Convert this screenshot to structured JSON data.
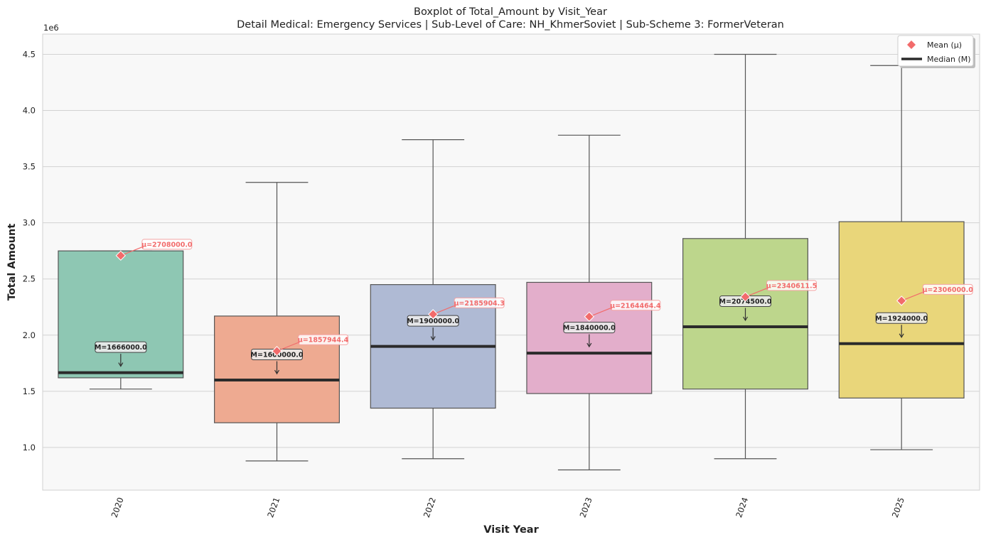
{
  "chart_data": {
    "type": "boxplot",
    "title": "Boxplot of Total_Amount by Visit_Year",
    "subtitle": "Detail Medical: Emergency Services | Sub-Level of Care: NH_KhmerSoviet | Sub-Scheme 3: FormerVeteran",
    "xlabel": "Visit Year",
    "ylabel": "Total Amount",
    "y_offset_label": "1e6",
    "ylim": [
      0.62,
      4.68
    ],
    "yticks": [
      1.0,
      1.5,
      2.0,
      2.5,
      3.0,
      3.5,
      4.0,
      4.5
    ],
    "ytick_labels": [
      "1.0",
      "1.5",
      "2.0",
      "2.5",
      "3.0",
      "3.5",
      "4.0",
      "4.5"
    ],
    "grid": true,
    "legend_position": "top-right",
    "legend": [
      {
        "label": "Mean (μ)",
        "marker": "diamond",
        "color": "#f26b6b"
      },
      {
        "label": "Median (M)",
        "marker": "line",
        "color": "#2b2b2b"
      }
    ],
    "categories": [
      "2020",
      "2021",
      "2022",
      "2023",
      "2024",
      "2025"
    ],
    "boxes": [
      {
        "category": "2020",
        "whisker_low": 1.52,
        "q1": 1.62,
        "median": 1.666,
        "q3": 2.75,
        "whisker_high": 2.75,
        "mean": 2.708,
        "median_label": "M=1666000.0",
        "mean_label": "μ=2708000.0",
        "color": "#8ec7b3"
      },
      {
        "category": "2021",
        "whisker_low": 0.88,
        "q1": 1.22,
        "median": 1.6,
        "q3": 2.17,
        "whisker_high": 3.36,
        "mean": 1.857944,
        "median_label": "M=1600000.0",
        "mean_label": "μ=1857944.4",
        "color": "#eeaa91"
      },
      {
        "category": "2022",
        "whisker_low": 0.9,
        "q1": 1.35,
        "median": 1.9,
        "q3": 2.45,
        "whisker_high": 3.74,
        "mean": 2.185904,
        "median_label": "M=1900000.0",
        "mean_label": "μ=2185904.3",
        "color": "#afbad4"
      },
      {
        "category": "2023",
        "whisker_low": 0.8,
        "q1": 1.48,
        "median": 1.84,
        "q3": 2.47,
        "whisker_high": 3.78,
        "mean": 2.164464,
        "median_label": "M=1840000.0",
        "mean_label": "μ=2164464.4",
        "color": "#e3aecb"
      },
      {
        "category": "2024",
        "whisker_low": 0.9,
        "q1": 1.52,
        "median": 2.0745,
        "q3": 2.86,
        "whisker_high": 4.5,
        "mean": 2.340611,
        "median_label": "M=2074500.0",
        "mean_label": "μ=2340611.5",
        "color": "#bdd68c"
      },
      {
        "category": "2025",
        "whisker_low": 0.98,
        "q1": 1.44,
        "median": 1.924,
        "q3": 3.01,
        "whisker_high": 4.4,
        "mean": 2.306,
        "median_label": "M=1924000.0",
        "mean_label": "μ=2306000.0",
        "color": "#e9d67a"
      }
    ]
  }
}
